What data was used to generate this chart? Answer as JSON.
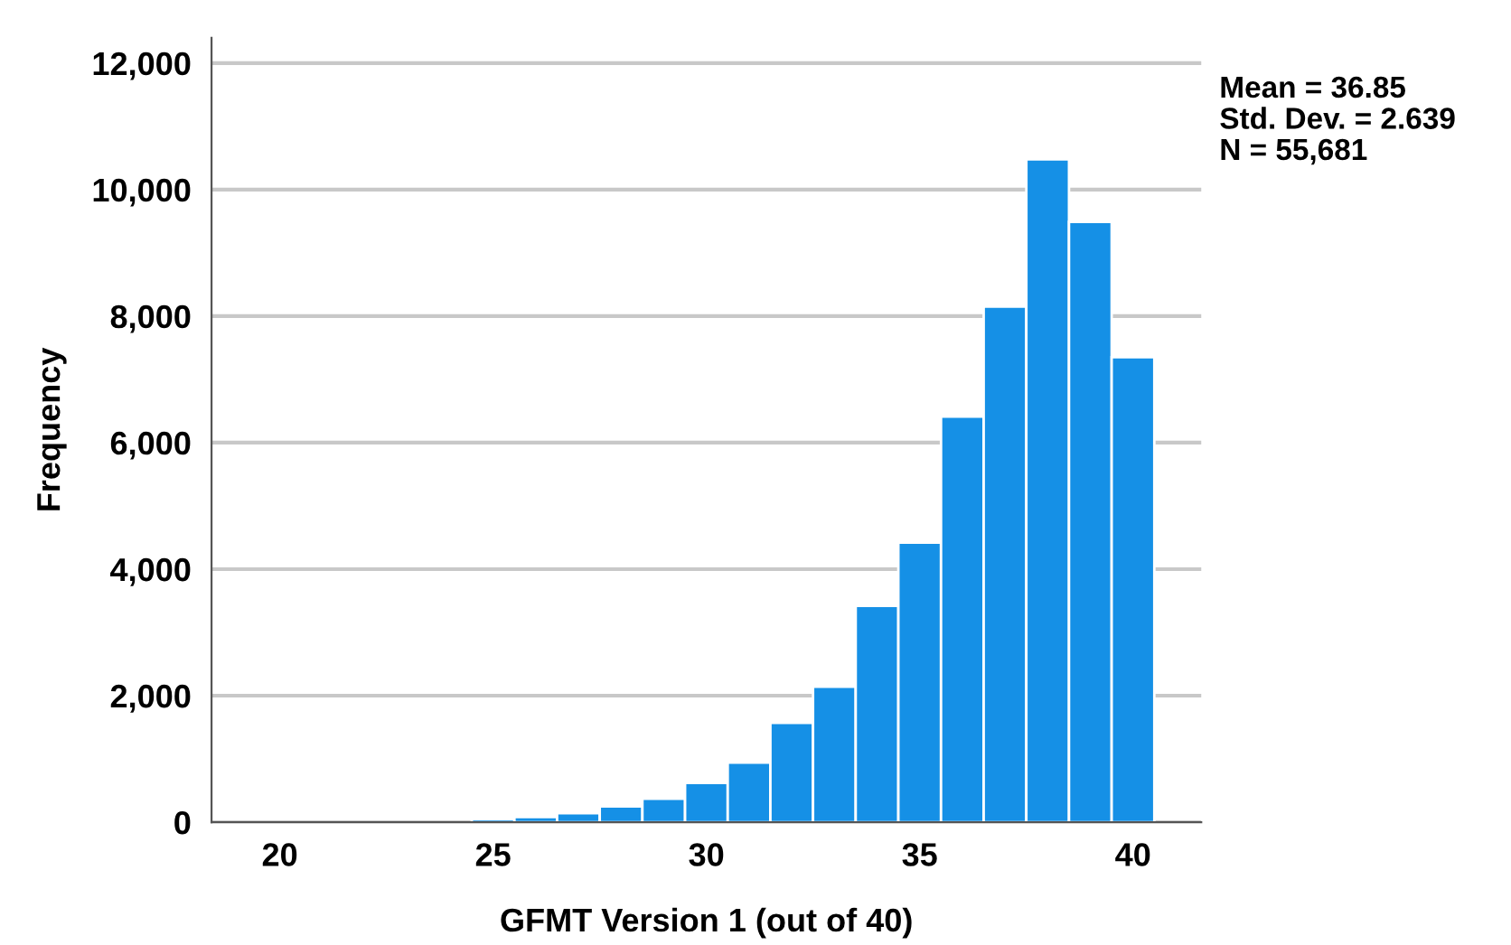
{
  "chart_data": {
    "type": "histogram",
    "xlabel": "GFMT Version 1 (out of 40)",
    "ylabel": "Frequency",
    "bins": [
      19.5,
      20.5,
      21.5,
      22.5,
      23.5,
      24.5,
      25.5,
      26.5,
      27.5,
      28.5,
      29.5,
      30.5,
      31.5,
      32.5,
      33.5,
      34.5,
      35.5,
      36.5,
      37.5,
      38.5,
      39.5,
      40.5
    ],
    "values": [
      null,
      null,
      null,
      null,
      null,
      50,
      80,
      140,
      250,
      370,
      620,
      940,
      1570,
      2140,
      3420,
      4420,
      6410,
      8150,
      10480,
      9490,
      7350
    ],
    "color": "#1590e6",
    "xlim": [
      18.4,
      41.6
    ],
    "xticks": [
      20,
      25,
      30,
      35,
      40
    ],
    "ylim": [
      0,
      12400
    ],
    "yticks": [
      {
        "value": 0,
        "label": "0"
      },
      {
        "value": 2000,
        "label": "2,000"
      },
      {
        "value": 4000,
        "label": "4,000"
      },
      {
        "value": 6000,
        "label": "6,000"
      },
      {
        "value": 8000,
        "label": "8,000"
      },
      {
        "value": 10000,
        "label": "10,000"
      },
      {
        "value": 12000,
        "label": "12,000"
      }
    ],
    "grid": "y",
    "annotations": [
      "Mean = 36.85",
      "Std. Dev. = 2.639",
      "N = 55,681"
    ]
  }
}
